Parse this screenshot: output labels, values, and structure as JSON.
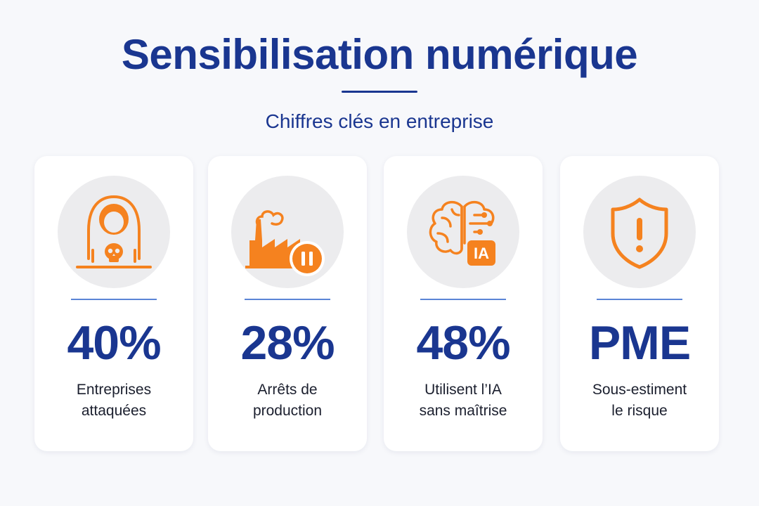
{
  "header": {
    "title": "Sensibilisation numérique",
    "subtitle": "Chiffres clés en entreprise"
  },
  "colors": {
    "primary_blue": "#1a3690",
    "accent_orange": "#f5821f",
    "icon_background": "#ececee"
  },
  "cards": [
    {
      "icon": "hacker-skull-icon",
      "stat": "40%",
      "label_line1": "Entreprises",
      "label_line2": "attaquées"
    },
    {
      "icon": "factory-pause-icon",
      "stat": "28%",
      "label_line1": "Arrêts de",
      "label_line2": "production"
    },
    {
      "icon": "brain-ai-icon",
      "icon_badge": "IA",
      "stat": "48%",
      "label_line1": "Utilisent l’IA",
      "label_line2": "sans maîtrise"
    },
    {
      "icon": "shield-warning-icon",
      "stat": "PME",
      "label_line1": "Sous-estiment",
      "label_line2": "le risque"
    }
  ]
}
